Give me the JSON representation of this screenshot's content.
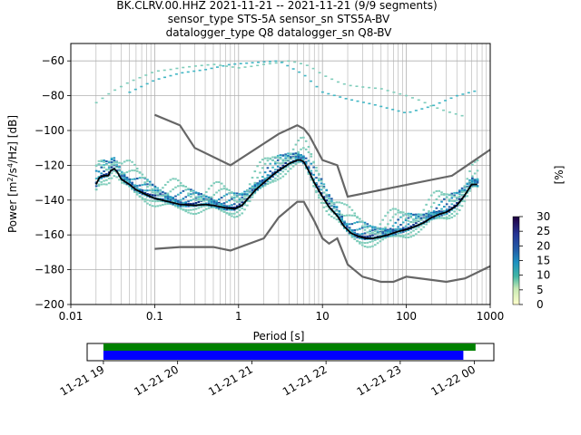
{
  "title_lines": [
    "BK.CLRV.00.HHZ   2021-11-21 -- 2021-11-21  (9/9 segments)",
    "sensor_type STS-5A sensor_sn STS5A-BV",
    "datalogger_type Q8 datalogger_sn Q8-BV"
  ],
  "colors": {
    "mean_curve": "#000000",
    "noise_models": "#666666",
    "grid": "#b0b0b0",
    "coverage_green": "#008000",
    "coverage_blue": "#0000ff",
    "colormap": [
      "#ffffcc",
      "#c7e9b4",
      "#7fcdbb",
      "#41b6c4",
      "#1d91c0",
      "#225ea8",
      "#0c2c84",
      "#200040"
    ]
  },
  "chart_data": {
    "type": "heatmap",
    "xlabel": "Period [s]",
    "ylabel": "Power [m^2/s^4/Hz] [dB]",
    "xscale": "log",
    "xlim": [
      0.01,
      1000
    ],
    "ylim": [
      -200,
      -50
    ],
    "x_tick_labels": [
      "0.01",
      "0.1",
      "1",
      "10",
      "100",
      "1000"
    ],
    "x_ticks": [
      0.01,
      0.1,
      1,
      10,
      100,
      1000
    ],
    "y_ticks": [
      -200,
      -180,
      -160,
      -140,
      -120,
      -100,
      -80,
      -60
    ],
    "y_tick_labels": [
      "−200",
      "−180",
      "−160",
      "−140",
      "−120",
      "−100",
      "−80",
      "−60"
    ],
    "grid": true,
    "colorbar": {
      "label": "[%]",
      "range": [
        0,
        30
      ],
      "ticks": [
        0,
        5,
        10,
        15,
        20,
        25,
        30
      ]
    },
    "mean_psd": {
      "periods": [
        0.02,
        0.022,
        0.025,
        0.028,
        0.03,
        0.033,
        0.036,
        0.04,
        0.05,
        0.06,
        0.08,
        0.1,
        0.15,
        0.2,
        0.3,
        0.4,
        0.5,
        0.7,
        0.9,
        1.1,
        1.3,
        1.6,
        2,
        2.5,
        3,
        3.5,
        4,
        4.5,
        5,
        5.5,
        6,
        7,
        8,
        10,
        12,
        15,
        18,
        22,
        27,
        33,
        40,
        50,
        60,
        80,
        100,
        130,
        160,
        200,
        250,
        300,
        350,
        400,
        450,
        500,
        600,
        700
      ],
      "power": [
        -131,
        -127,
        -126,
        -126,
        -123,
        -122,
        -124,
        -128,
        -131,
        -134,
        -137,
        -139,
        -141,
        -142.5,
        -143,
        -142.5,
        -143,
        -144.5,
        -145,
        -143,
        -139,
        -134,
        -130,
        -126,
        -123,
        -121,
        -119,
        -118,
        -117,
        -117,
        -118,
        -124,
        -130,
        -138,
        -144,
        -149,
        -155,
        -159,
        -161,
        -162,
        -162,
        -161,
        -160,
        -158,
        -157,
        -155,
        -153,
        -150,
        -148,
        -147,
        -145,
        -143,
        -140,
        -137,
        -131,
        -131
      ]
    },
    "noise_models": [
      {
        "periods": [
          0.1,
          0.2,
          0.3,
          0.8,
          3,
          5,
          6,
          7,
          10,
          15,
          20,
          350,
          1000
        ],
        "power": [
          -91,
          -97,
          -110,
          -120,
          -102,
          -97,
          -99,
          -103,
          -117,
          -120,
          -138,
          -126,
          -111
        ]
      },
      {
        "periods": [
          0.1,
          0.2,
          0.5,
          0.8,
          2,
          3,
          5,
          6,
          8,
          10,
          12,
          15,
          20,
          30,
          50,
          70,
          100,
          300,
          500,
          1000
        ],
        "power": [
          -168,
          -167,
          -167,
          -169,
          -162,
          -150,
          -141,
          -141,
          -152,
          -162,
          -165,
          -162,
          -177,
          -184,
          -187,
          -187,
          -184,
          -187,
          -185,
          -178
        ]
      }
    ],
    "histogram_bands": [
      {
        "periods": [
          0.02,
          0.03,
          0.05,
          0.08,
          0.1,
          0.15,
          0.2,
          0.3,
          0.5,
          0.7,
          1,
          1.5,
          2,
          3,
          4,
          5,
          7,
          10,
          15,
          20,
          30,
          50,
          70,
          100,
          150,
          200,
          300,
          500
        ],
        "power": [
          -84,
          -78,
          -72,
          -68,
          -66,
          -65,
          -64,
          -63,
          -62,
          -63,
          -64,
          -63,
          -62,
          -61,
          -60,
          -61,
          -63,
          -68,
          -72,
          -74,
          -75,
          -76,
          -78,
          -80,
          -83,
          -86,
          -89,
          -92
        ],
        "level": 2
      },
      {
        "periods": [
          0.05,
          0.1,
          0.2,
          0.4,
          0.8,
          1.5,
          3,
          6,
          10,
          20,
          40,
          100,
          200,
          400,
          700
        ],
        "power": [
          -78,
          -71,
          -67,
          -65,
          -62,
          -61,
          -60,
          -68,
          -78,
          -82,
          -85,
          -90,
          -86,
          -80,
          -77
        ],
        "level": 3
      }
    ]
  },
  "time_axis": {
    "tick_labels": [
      "11-21 19",
      "11-21 20",
      "11-21 21",
      "11-21 22",
      "11-21 23",
      "11-22 00"
    ],
    "coverage_start_fraction": 0.04,
    "green_end_fraction": 0.955,
    "blue_end_fraction": 0.925
  }
}
